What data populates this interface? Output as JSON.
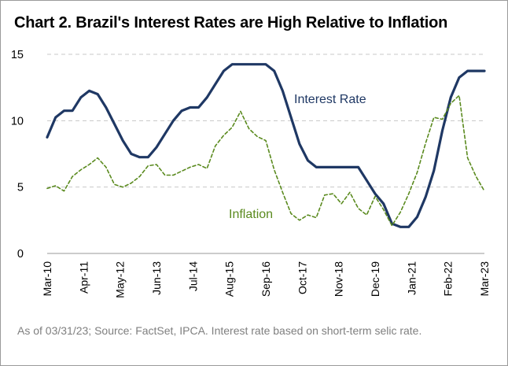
{
  "chart_data": {
    "type": "line",
    "title": "Chart 2. Brazil's Interest Rates are High Relative to Inflation",
    "xlabel": "",
    "ylabel": "",
    "ylim": [
      0,
      15
    ],
    "yticks": [
      0,
      5,
      10,
      15
    ],
    "x_range": [
      "2010-03",
      "2023-03"
    ],
    "xticks": [
      "Mar-10",
      "Apr-11",
      "May-12",
      "Jun-13",
      "Jul-14",
      "Aug-15",
      "Sep-16",
      "Oct-17",
      "Nov-18",
      "Dec-19",
      "Jan-21",
      "Feb-22",
      "Mar-23"
    ],
    "grid": "horizontal dashed",
    "colors": {
      "interest_rate": "#1f3864",
      "inflation": "#5a8a1e",
      "grid": "#c8c8c8"
    },
    "series": [
      {
        "name": "Interest Rate",
        "style": "solid",
        "points": [
          [
            "2010-03",
            8.75
          ],
          [
            "2010-06",
            10.25
          ],
          [
            "2010-09",
            10.75
          ],
          [
            "2010-12",
            10.75
          ],
          [
            "2011-03",
            11.75
          ],
          [
            "2011-06",
            12.25
          ],
          [
            "2011-09",
            12.0
          ],
          [
            "2011-12",
            11.0
          ],
          [
            "2012-03",
            9.75
          ],
          [
            "2012-06",
            8.5
          ],
          [
            "2012-09",
            7.5
          ],
          [
            "2012-12",
            7.25
          ],
          [
            "2013-03",
            7.25
          ],
          [
            "2013-06",
            8.0
          ],
          [
            "2013-09",
            9.0
          ],
          [
            "2013-12",
            10.0
          ],
          [
            "2014-03",
            10.75
          ],
          [
            "2014-06",
            11.0
          ],
          [
            "2014-09",
            11.0
          ],
          [
            "2014-12",
            11.75
          ],
          [
            "2015-03",
            12.75
          ],
          [
            "2015-06",
            13.75
          ],
          [
            "2015-09",
            14.25
          ],
          [
            "2015-12",
            14.25
          ],
          [
            "2016-03",
            14.25
          ],
          [
            "2016-06",
            14.25
          ],
          [
            "2016-09",
            14.25
          ],
          [
            "2016-12",
            13.75
          ],
          [
            "2017-03",
            12.25
          ],
          [
            "2017-06",
            10.25
          ],
          [
            "2017-09",
            8.25
          ],
          [
            "2017-12",
            7.0
          ],
          [
            "2018-03",
            6.5
          ],
          [
            "2018-06",
            6.5
          ],
          [
            "2018-09",
            6.5
          ],
          [
            "2018-12",
            6.5
          ],
          [
            "2019-03",
            6.5
          ],
          [
            "2019-06",
            6.5
          ],
          [
            "2019-09",
            5.5
          ],
          [
            "2019-12",
            4.5
          ],
          [
            "2020-03",
            3.75
          ],
          [
            "2020-06",
            2.25
          ],
          [
            "2020-09",
            2.0
          ],
          [
            "2020-12",
            2.0
          ],
          [
            "2021-03",
            2.75
          ],
          [
            "2021-06",
            4.25
          ],
          [
            "2021-09",
            6.25
          ],
          [
            "2021-12",
            9.25
          ],
          [
            "2022-03",
            11.75
          ],
          [
            "2022-06",
            13.25
          ],
          [
            "2022-09",
            13.75
          ],
          [
            "2022-12",
            13.75
          ],
          [
            "2023-03",
            13.75
          ]
        ]
      },
      {
        "name": "Inflation",
        "style": "dashed",
        "points": [
          [
            "2010-03",
            4.9
          ],
          [
            "2010-06",
            5.1
          ],
          [
            "2010-09",
            4.7
          ],
          [
            "2010-12",
            5.8
          ],
          [
            "2011-03",
            6.3
          ],
          [
            "2011-06",
            6.7
          ],
          [
            "2011-09",
            7.2
          ],
          [
            "2011-12",
            6.5
          ],
          [
            "2012-03",
            5.2
          ],
          [
            "2012-06",
            5.0
          ],
          [
            "2012-09",
            5.3
          ],
          [
            "2012-12",
            5.8
          ],
          [
            "2013-03",
            6.6
          ],
          [
            "2013-06",
            6.7
          ],
          [
            "2013-09",
            5.9
          ],
          [
            "2013-12",
            5.9
          ],
          [
            "2014-03",
            6.2
          ],
          [
            "2014-06",
            6.5
          ],
          [
            "2014-09",
            6.7
          ],
          [
            "2014-12",
            6.4
          ],
          [
            "2015-03",
            8.1
          ],
          [
            "2015-06",
            8.9
          ],
          [
            "2015-09",
            9.5
          ],
          [
            "2015-12",
            10.7
          ],
          [
            "2016-03",
            9.4
          ],
          [
            "2016-06",
            8.8
          ],
          [
            "2016-09",
            8.5
          ],
          [
            "2016-12",
            6.3
          ],
          [
            "2017-03",
            4.6
          ],
          [
            "2017-06",
            3.0
          ],
          [
            "2017-09",
            2.5
          ],
          [
            "2017-12",
            2.9
          ],
          [
            "2018-03",
            2.7
          ],
          [
            "2018-06",
            4.4
          ],
          [
            "2018-09",
            4.5
          ],
          [
            "2018-12",
            3.75
          ],
          [
            "2019-03",
            4.6
          ],
          [
            "2019-06",
            3.4
          ],
          [
            "2019-09",
            2.9
          ],
          [
            "2019-12",
            4.3
          ],
          [
            "2020-03",
            3.3
          ],
          [
            "2020-06",
            2.1
          ],
          [
            "2020-09",
            3.1
          ],
          [
            "2020-12",
            4.5
          ],
          [
            "2021-03",
            6.1
          ],
          [
            "2021-06",
            8.3
          ],
          [
            "2021-09",
            10.25
          ],
          [
            "2021-12",
            10.1
          ],
          [
            "2022-03",
            11.3
          ],
          [
            "2022-06",
            11.9
          ],
          [
            "2022-09",
            7.2
          ],
          [
            "2022-12",
            5.8
          ],
          [
            "2023-03",
            4.7
          ]
        ]
      }
    ],
    "annotations": [
      {
        "text": "Interest Rate",
        "series": "Interest Rate"
      },
      {
        "text": "Inflation",
        "series": "Inflation"
      }
    ],
    "footnote": "As of 03/31/23; Source: FactSet, IPCA. Interest rate based on short-term selic rate."
  }
}
